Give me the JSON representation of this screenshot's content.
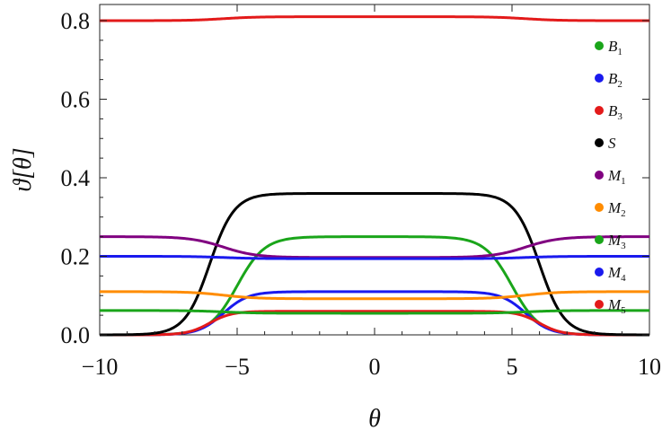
{
  "chart_data": {
    "type": "line",
    "xlabel": "θ",
    "ylabel": "ϑ[θ]",
    "xlim": [
      -10,
      10
    ],
    "ylim": [
      0,
      0.85
    ],
    "x_ticks": [
      -10,
      -5,
      0,
      5,
      10
    ],
    "x_tick_labels": [
      "−10",
      "−5",
      "0",
      "5",
      "10"
    ],
    "y_ticks": [
      0.0,
      0.2,
      0.4,
      0.6,
      0.8
    ],
    "y_tick_labels": [
      "0.0",
      "0.2",
      "0.4",
      "0.6",
      "0.8"
    ],
    "legend_position": "right",
    "grid": false,
    "series": [
      {
        "name": "B1",
        "base": "B",
        "sub": "1",
        "color": "#1aa51a",
        "outer": 0.0,
        "inner": 0.25,
        "center": 5.0,
        "width": 0.5
      },
      {
        "name": "B2",
        "base": "B",
        "sub": "2",
        "color": "#1a1aee",
        "outer": 0.0,
        "inner": 0.11,
        "center": 5.5,
        "width": 0.45
      },
      {
        "name": "B3",
        "base": "B",
        "sub": "3",
        "color": "#e31a1a",
        "outer": 0.0,
        "inner": 0.06,
        "center": 6.0,
        "width": 0.4
      },
      {
        "name": "S",
        "base": "S",
        "sub": "",
        "color": "#000000",
        "outer": 0.0,
        "inner": 0.36,
        "center": 6.0,
        "width": 0.45
      },
      {
        "name": "M1",
        "base": "M",
        "sub": "1",
        "color": "#800080",
        "outer": 0.25,
        "inner": 0.197,
        "center": 5.5,
        "width": 0.6
      },
      {
        "name": "M2",
        "base": "M",
        "sub": "2",
        "color": "#ff8c00",
        "outer": 0.11,
        "inner": 0.092,
        "center": 5.5,
        "width": 0.6
      },
      {
        "name": "M3",
        "base": "M",
        "sub": "3",
        "color": "#1aa51a",
        "outer": 0.062,
        "inner": 0.055,
        "center": 5.5,
        "width": 0.6
      },
      {
        "name": "M4",
        "base": "M",
        "sub": "4",
        "color": "#1a1aee",
        "outer": 0.2,
        "inner": 0.194,
        "center": 5.5,
        "width": 0.6
      },
      {
        "name": "M5",
        "base": "M",
        "sub": "5",
        "color": "#e31a1a",
        "outer": 0.8,
        "inner": 0.81,
        "center": 5.5,
        "width": 0.6
      }
    ]
  }
}
